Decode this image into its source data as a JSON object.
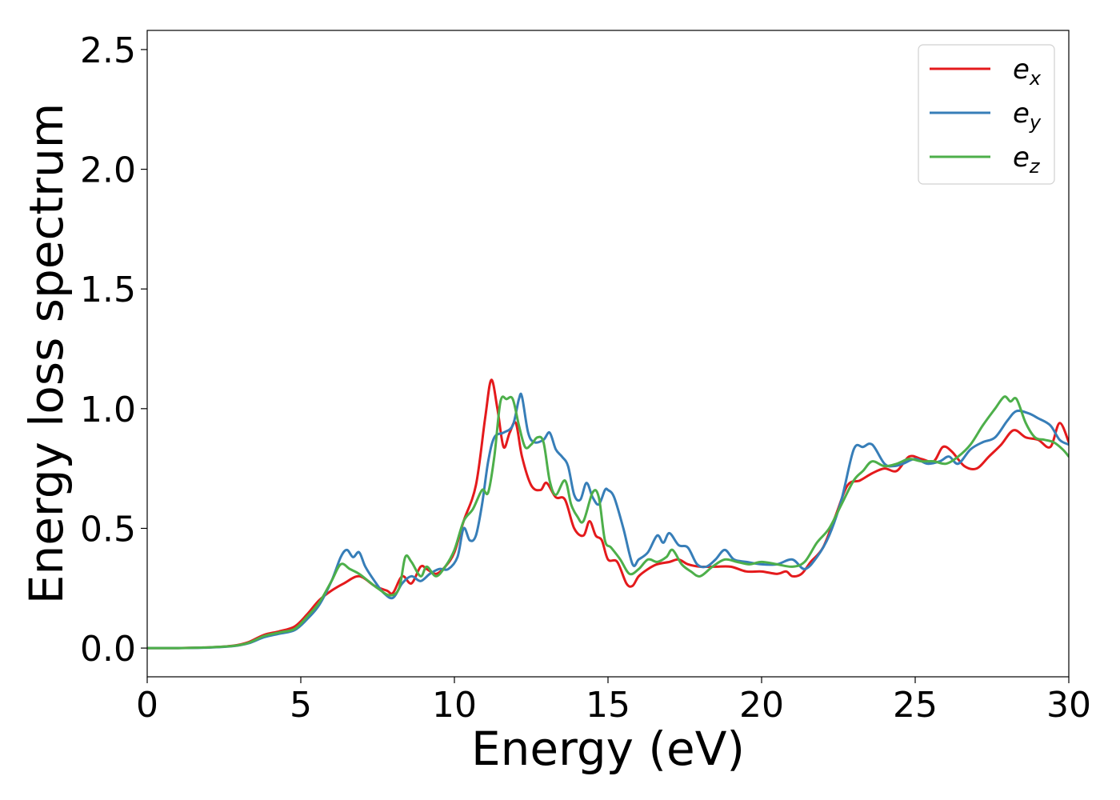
{
  "chart_data": {
    "type": "line",
    "title": "",
    "xlabel": "Energy (eV)",
    "ylabel": "Energy loss spectrum",
    "xlim": [
      0,
      30
    ],
    "ylim": [
      -0.12,
      2.58
    ],
    "xticks": [
      0,
      5,
      10,
      15,
      20,
      25,
      30
    ],
    "xtick_labels": [
      "0",
      "5",
      "10",
      "15",
      "20",
      "25",
      "30"
    ],
    "yticks": [
      0.0,
      0.5,
      1.0,
      1.5,
      2.0,
      2.5
    ],
    "ytick_labels": [
      "0.0",
      "0.5",
      "1.0",
      "1.5",
      "2.0",
      "2.5"
    ],
    "grid": false,
    "legend_position": "top-right",
    "series": [
      {
        "name": "e_x",
        "label_base": "e",
        "label_sub": "x",
        "color": "#e41a1c",
        "x": [
          0,
          1,
          2,
          2.8,
          3.3,
          3.8,
          4.3,
          4.8,
          5.2,
          5.6,
          6.0,
          6.4,
          6.9,
          7.4,
          7.8,
          8.0,
          8.3,
          8.6,
          8.9,
          9.1,
          9.4,
          9.7,
          10.0,
          10.3,
          10.7,
          11.0,
          11.2,
          11.4,
          11.6,
          11.8,
          12.0,
          12.2,
          12.5,
          12.8,
          13.0,
          13.3,
          13.6,
          13.9,
          14.2,
          14.4,
          14.6,
          14.8,
          15.0,
          15.3,
          15.6,
          15.8,
          16.0,
          16.3,
          16.6,
          17.0,
          17.3,
          17.6,
          18.0,
          18.5,
          19.0,
          19.5,
          20.0,
          20.5,
          20.8,
          21.0,
          21.3,
          21.6,
          22.0,
          22.4,
          22.8,
          23.2,
          23.6,
          24.0,
          24.4,
          24.8,
          25.2,
          25.6,
          25.9,
          26.2,
          26.6,
          27.0,
          27.4,
          27.8,
          28.2,
          28.6,
          29.0,
          29.4,
          29.7,
          30.0
        ],
        "y": [
          0.0,
          0.0,
          0.003,
          0.01,
          0.025,
          0.055,
          0.07,
          0.09,
          0.14,
          0.2,
          0.24,
          0.27,
          0.3,
          0.26,
          0.24,
          0.23,
          0.3,
          0.27,
          0.34,
          0.33,
          0.31,
          0.34,
          0.4,
          0.53,
          0.68,
          0.96,
          1.12,
          1.0,
          0.84,
          0.9,
          0.94,
          0.8,
          0.68,
          0.66,
          0.69,
          0.63,
          0.62,
          0.5,
          0.47,
          0.53,
          0.47,
          0.45,
          0.37,
          0.36,
          0.27,
          0.26,
          0.3,
          0.33,
          0.35,
          0.36,
          0.37,
          0.35,
          0.34,
          0.34,
          0.34,
          0.32,
          0.32,
          0.31,
          0.32,
          0.3,
          0.31,
          0.36,
          0.42,
          0.55,
          0.68,
          0.7,
          0.73,
          0.75,
          0.74,
          0.8,
          0.79,
          0.78,
          0.84,
          0.82,
          0.76,
          0.75,
          0.8,
          0.85,
          0.91,
          0.88,
          0.87,
          0.84,
          0.94,
          0.86
        ]
      },
      {
        "name": "e_y",
        "label_base": "e",
        "label_sub": "y",
        "color": "#377eb8",
        "x": [
          0,
          1,
          2,
          2.8,
          3.3,
          3.8,
          4.3,
          4.8,
          5.2,
          5.6,
          6.0,
          6.3,
          6.5,
          6.7,
          6.9,
          7.1,
          7.4,
          7.7,
          8.0,
          8.3,
          8.6,
          8.9,
          9.2,
          9.5,
          9.8,
          10.1,
          10.3,
          10.5,
          10.7,
          10.9,
          11.1,
          11.3,
          11.6,
          11.9,
          12.1,
          12.2,
          12.4,
          12.6,
          12.9,
          13.1,
          13.3,
          13.5,
          13.7,
          13.9,
          14.1,
          14.3,
          14.5,
          14.7,
          14.9,
          15.0,
          15.2,
          15.5,
          15.8,
          16.0,
          16.3,
          16.6,
          16.8,
          17.0,
          17.3,
          17.6,
          17.9,
          18.2,
          18.5,
          18.8,
          19.1,
          19.5,
          20.0,
          20.5,
          21.0,
          21.4,
          21.8,
          22.2,
          22.6,
          23.0,
          23.3,
          23.6,
          24.0,
          24.3,
          24.6,
          25.0,
          25.4,
          25.8,
          26.1,
          26.4,
          26.8,
          27.2,
          27.6,
          28.0,
          28.3,
          28.7,
          29.0,
          29.4,
          29.7,
          30.0
        ],
        "y": [
          0.0,
          0.0,
          0.002,
          0.008,
          0.02,
          0.045,
          0.06,
          0.075,
          0.12,
          0.18,
          0.28,
          0.38,
          0.41,
          0.38,
          0.4,
          0.34,
          0.28,
          0.23,
          0.21,
          0.27,
          0.3,
          0.28,
          0.31,
          0.33,
          0.33,
          0.38,
          0.5,
          0.45,
          0.47,
          0.6,
          0.78,
          0.88,
          0.9,
          0.93,
          1.04,
          1.05,
          0.9,
          0.86,
          0.87,
          0.9,
          0.83,
          0.8,
          0.76,
          0.64,
          0.62,
          0.69,
          0.63,
          0.6,
          0.66,
          0.66,
          0.63,
          0.5,
          0.35,
          0.37,
          0.4,
          0.47,
          0.44,
          0.48,
          0.43,
          0.42,
          0.35,
          0.34,
          0.37,
          0.41,
          0.37,
          0.36,
          0.35,
          0.35,
          0.37,
          0.33,
          0.38,
          0.47,
          0.62,
          0.83,
          0.84,
          0.85,
          0.77,
          0.76,
          0.77,
          0.79,
          0.77,
          0.78,
          0.8,
          0.77,
          0.83,
          0.86,
          0.88,
          0.95,
          0.99,
          0.98,
          0.96,
          0.93,
          0.87,
          0.85
        ]
      },
      {
        "name": "e_z",
        "label_base": "e",
        "label_sub": "z",
        "color": "#4daf4a",
        "x": [
          0,
          1,
          2,
          2.8,
          3.3,
          3.8,
          4.3,
          4.8,
          5.2,
          5.6,
          6.0,
          6.3,
          6.6,
          6.9,
          7.2,
          7.5,
          7.9,
          8.2,
          8.4,
          8.6,
          8.9,
          9.1,
          9.4,
          9.7,
          10.0,
          10.3,
          10.6,
          10.9,
          11.1,
          11.3,
          11.5,
          11.7,
          11.9,
          12.1,
          12.3,
          12.5,
          12.7,
          12.9,
          13.1,
          13.3,
          13.6,
          13.8,
          14.0,
          14.2,
          14.5,
          14.7,
          14.9,
          15.1,
          15.4,
          15.7,
          16.0,
          16.3,
          16.6,
          16.9,
          17.1,
          17.4,
          17.7,
          18.0,
          18.4,
          18.8,
          19.2,
          19.6,
          20.0,
          20.5,
          21.0,
          21.4,
          21.8,
          22.2,
          22.6,
          23.0,
          23.3,
          23.6,
          24.0,
          24.4,
          24.8,
          25.2,
          25.6,
          26.0,
          26.4,
          26.8,
          27.2,
          27.6,
          27.9,
          28.1,
          28.3,
          28.6,
          28.9,
          29.2,
          29.5,
          29.8,
          30.0
        ],
        "y": [
          0.0,
          0.0,
          0.003,
          0.009,
          0.022,
          0.05,
          0.065,
          0.08,
          0.13,
          0.19,
          0.28,
          0.35,
          0.33,
          0.31,
          0.28,
          0.25,
          0.22,
          0.25,
          0.38,
          0.36,
          0.3,
          0.34,
          0.3,
          0.34,
          0.41,
          0.53,
          0.58,
          0.66,
          0.65,
          0.8,
          1.03,
          1.04,
          1.04,
          0.93,
          0.84,
          0.85,
          0.88,
          0.86,
          0.7,
          0.64,
          0.7,
          0.6,
          0.55,
          0.53,
          0.65,
          0.63,
          0.45,
          0.42,
          0.37,
          0.31,
          0.33,
          0.37,
          0.36,
          0.38,
          0.41,
          0.35,
          0.32,
          0.3,
          0.34,
          0.37,
          0.36,
          0.35,
          0.36,
          0.35,
          0.34,
          0.36,
          0.44,
          0.5,
          0.6,
          0.7,
          0.74,
          0.78,
          0.76,
          0.77,
          0.79,
          0.78,
          0.78,
          0.77,
          0.8,
          0.85,
          0.93,
          1.0,
          1.05,
          1.03,
          1.04,
          0.94,
          0.88,
          0.87,
          0.86,
          0.83,
          0.8
        ]
      }
    ]
  }
}
